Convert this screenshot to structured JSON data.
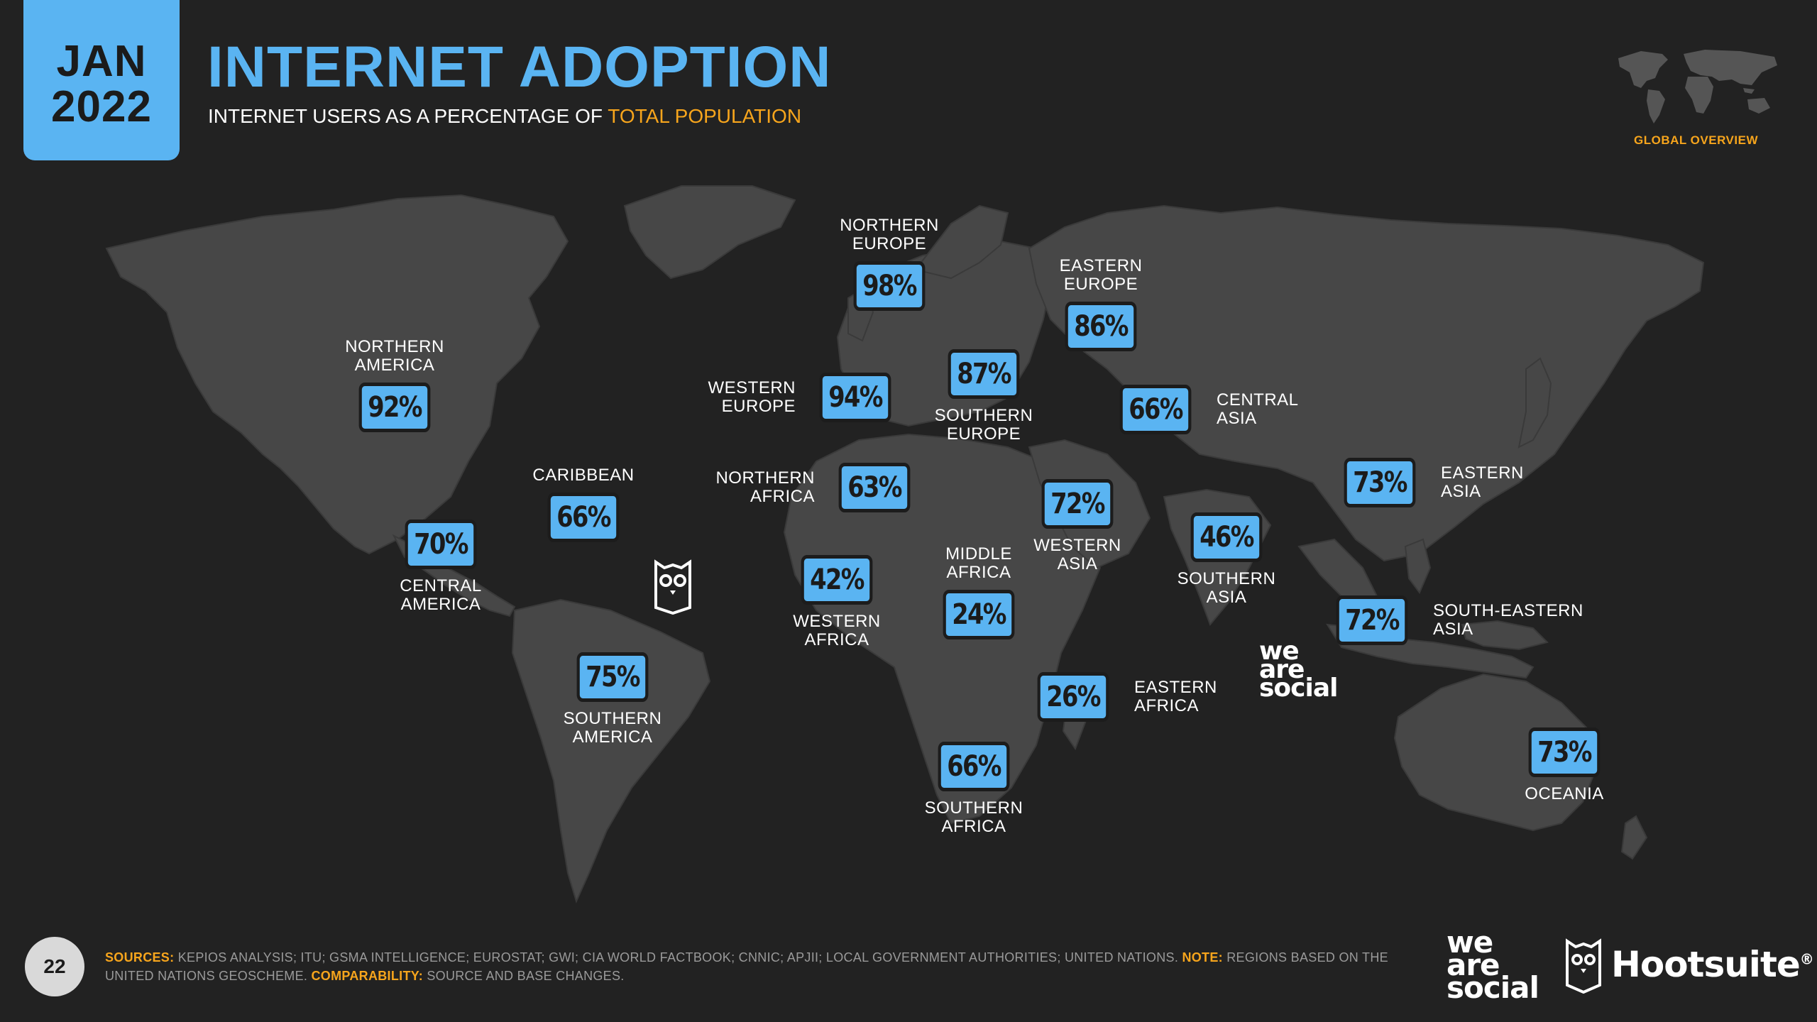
{
  "header": {
    "month": "JAN",
    "year": "2022",
    "title": "INTERNET ADOPTION",
    "subtitle_main": "INTERNET USERS AS A PERCENTAGE OF ",
    "subtitle_highlight": "TOTAL POPULATION",
    "overview_label": "GLOBAL OVERVIEW"
  },
  "colors": {
    "accent_blue": "#5ab4f2",
    "accent_orange": "#f7a51c",
    "background": "#222222",
    "land": "#474747"
  },
  "regions": [
    {
      "id": "northern-america",
      "label": "NORTHERN\nAMERICA",
      "value": "92%"
    },
    {
      "id": "central-america",
      "label": "CENTRAL\nAMERICA",
      "value": "70%"
    },
    {
      "id": "caribbean",
      "label": "CARIBBEAN",
      "value": "66%"
    },
    {
      "id": "southern-america",
      "label": "SOUTHERN\nAMERICA",
      "value": "75%"
    },
    {
      "id": "northern-europe",
      "label": "NORTHERN\nEUROPE",
      "value": "98%"
    },
    {
      "id": "western-europe",
      "label": "WESTERN\nEUROPE",
      "value": "94%"
    },
    {
      "id": "southern-europe",
      "label": "SOUTHERN\nEUROPE",
      "value": "87%"
    },
    {
      "id": "eastern-europe",
      "label": "EASTERN\nEUROPE",
      "value": "86%"
    },
    {
      "id": "northern-africa",
      "label": "NORTHERN\nAFRICA",
      "value": "63%"
    },
    {
      "id": "western-africa",
      "label": "WESTERN\nAFRICA",
      "value": "42%"
    },
    {
      "id": "middle-africa",
      "label": "MIDDLE\nAFRICA",
      "value": "24%"
    },
    {
      "id": "eastern-africa",
      "label": "EASTERN\nAFRICA",
      "value": "26%"
    },
    {
      "id": "southern-africa",
      "label": "SOUTHERN\nAFRICA",
      "value": "66%"
    },
    {
      "id": "western-asia",
      "label": "WESTERN\nASIA",
      "value": "72%"
    },
    {
      "id": "central-asia",
      "label": "CENTRAL\nASIA",
      "value": "66%"
    },
    {
      "id": "southern-asia",
      "label": "SOUTHERN\nASIA",
      "value": "46%"
    },
    {
      "id": "eastern-asia",
      "label": "EASTERN\nASIA",
      "value": "73%"
    },
    {
      "id": "south-eastern-asia",
      "label": "SOUTH-EASTERN\nASIA",
      "value": "72%"
    },
    {
      "id": "oceania",
      "label": "OCEANIA",
      "value": "73%"
    }
  ],
  "footer": {
    "page_number": "22",
    "sources_key": "SOURCES:",
    "sources_text": " KEPIOS ANALYSIS; ITU; GSMA INTELLIGENCE; EUROSTAT; GWI; CIA WORLD FACTBOOK; CNNIC; APJII; LOCAL GOVERNMENT AUTHORITIES; UNITED NATIONS. ",
    "note_key": "NOTE:",
    "note_text": " REGIONS BASED ON THE UNITED NATIONS GEOSCHEME. ",
    "comparability_key": "COMPARABILITY:",
    "comparability_text": " SOURCE AND BASE CHANGES."
  },
  "logos": {
    "we_are_social": [
      "we",
      "are",
      "social"
    ],
    "hootsuite": "Hootsuite",
    "hootsuite_mark": "®"
  }
}
